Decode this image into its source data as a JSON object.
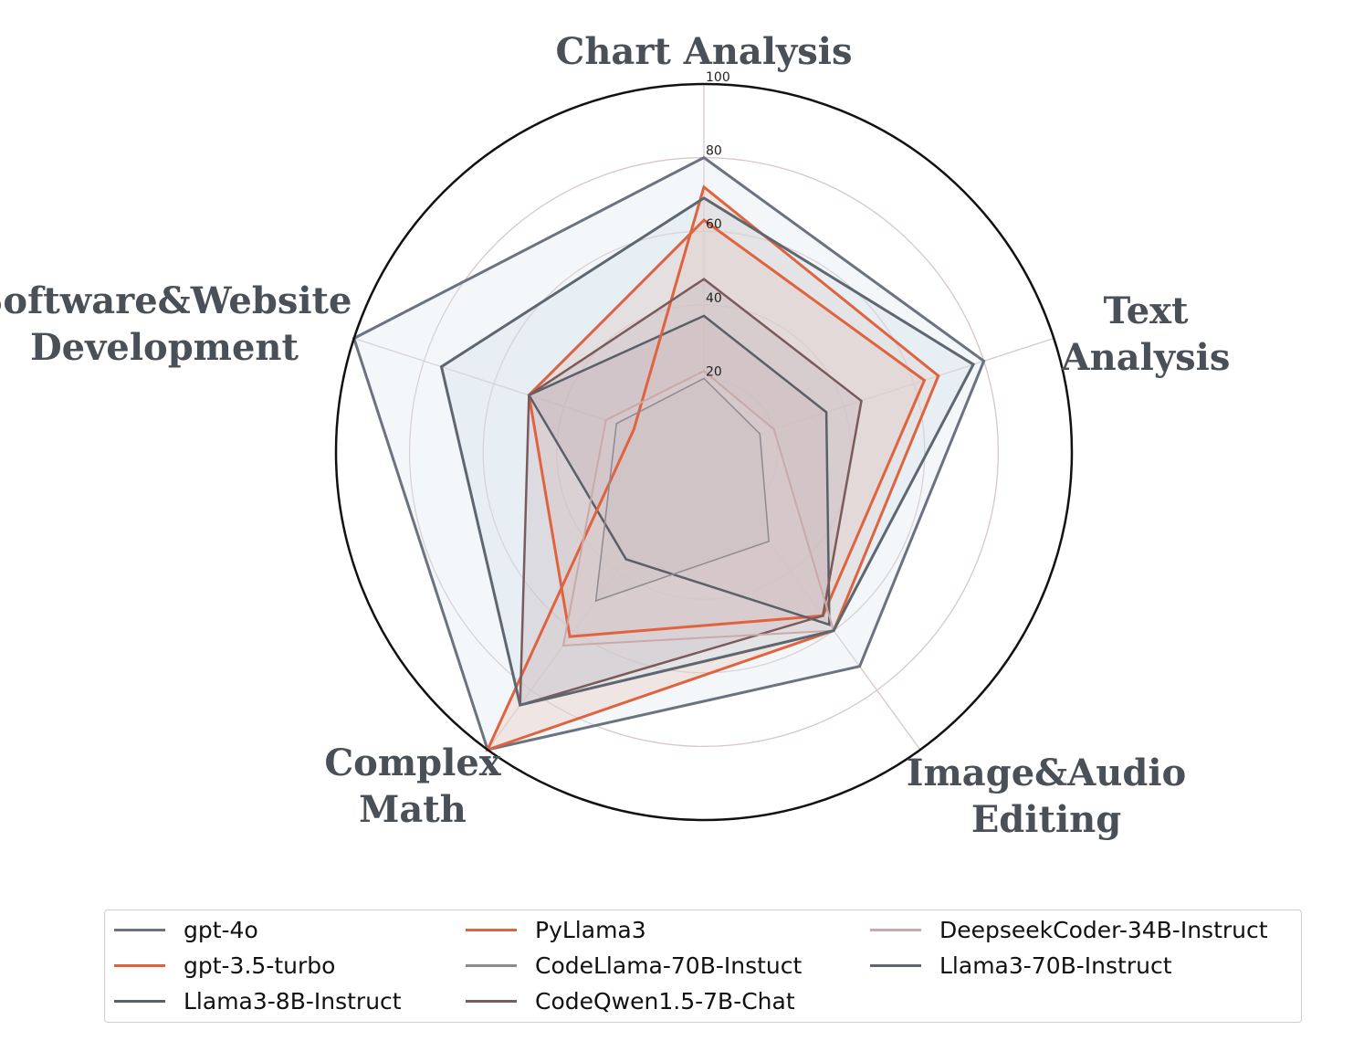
{
  "chart_data": {
    "type": "radar",
    "axes": [
      "Chart Analysis",
      "Text Analysis",
      "Image&Audio Editing",
      "Complex Math",
      "Software&Website Development"
    ],
    "axis_label_lines": [
      [
        "Chart Analysis"
      ],
      [
        "Text",
        "Analysis"
      ],
      [
        "Image&Audio",
        "Editing"
      ],
      [
        "Complex",
        "Math"
      ],
      [
        "Software&Website",
        "Development"
      ]
    ],
    "rlim": [
      0,
      100
    ],
    "rticks": [
      "20",
      "40",
      "60",
      "80",
      "100"
    ],
    "series": [
      {
        "name": "gpt-4o",
        "values": [
          80,
          80,
          72,
          100,
          100
        ],
        "color": "#6b7280",
        "fill": "#dde8f0",
        "width": 3
      },
      {
        "name": "gpt-3.5-turbo",
        "values": [
          63,
          63,
          55,
          62,
          50
        ],
        "color": "#e0633f",
        "fill": "#e9b8a9",
        "width": 3
      },
      {
        "name": "Llama3-8B-Instruct",
        "values": [
          37,
          35,
          58,
          36,
          50
        ],
        "color": "#5a6068",
        "fill": "#b58d90",
        "width": 2.5
      },
      {
        "name": "PyLlama3",
        "values": [
          72,
          67,
          60,
          100,
          20
        ],
        "color": "#e0633f",
        "fill": "#e9c5b8",
        "width": 3
      },
      {
        "name": "CodeLlama-70B-Instuct",
        "values": [
          20,
          16,
          30,
          50,
          25
        ],
        "color": "#8e8a92",
        "fill": "#c1a3a7",
        "width": 1.5
      },
      {
        "name": "CodeQwen1.5-7B-Chat",
        "values": [
          47,
          45,
          55,
          85,
          50
        ],
        "color": "#7a5a5a",
        "fill": "#c1a3a7",
        "width": 2.5
      },
      {
        "name": "DeepseekCoder-34B-Instruct",
        "values": [
          22,
          20,
          60,
          65,
          28
        ],
        "color": "#c9a9a9",
        "fill": "#ddc4c4",
        "width": 2
      },
      {
        "name": "Llama3-70B-Instruct",
        "values": [
          69,
          77,
          60,
          85,
          75
        ],
        "color": "#5e6670",
        "fill": "#d2dde7",
        "width": 3
      }
    ],
    "legend_position": "bottom",
    "grid": true
  }
}
